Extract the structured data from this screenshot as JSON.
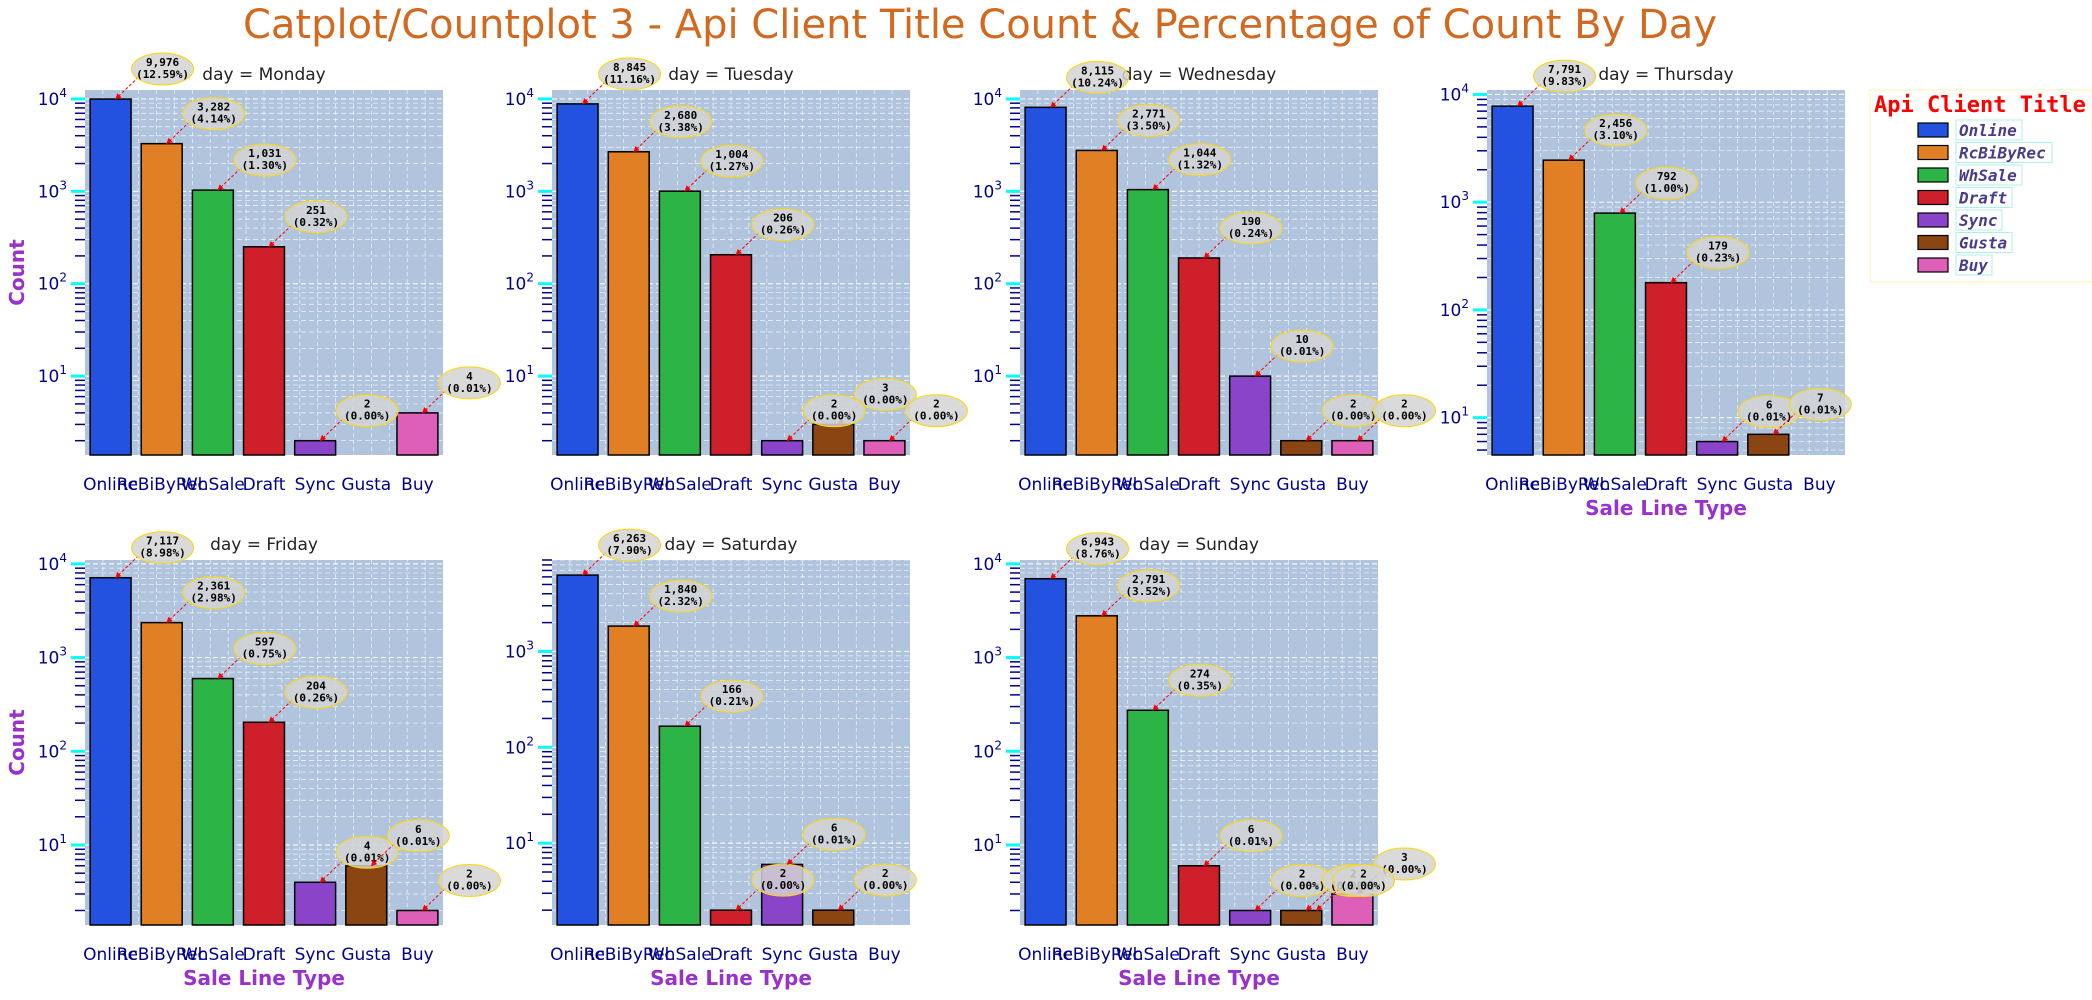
{
  "title": "Catplot/Countplot 3 - Api Client Title Count & Percentage of Count By Day",
  "colors": {
    "title": "#d2691e",
    "plot_background": "#b0c4de",
    "grid": "#ffffff",
    "tick_label": "#00008b",
    "major_tick": "#00ffff",
    "minor_tick": "#00008b",
    "axis_label": "#9932cc",
    "legend_title": "#ff0000",
    "legend_text": "#483d8b",
    "annotation_arrow": "#ff0000",
    "annotation_box": "#d3d3d3",
    "annotation_box_edge": "#ffd700"
  },
  "chart_data": {
    "type": "bar",
    "title": "Catplot/Countplot 3 - Api Client Title Count & Percentage of Count By Day",
    "xlabel": "Sale Line Type",
    "ylabel": "Count",
    "yscale": "log",
    "grid": true,
    "legend_title": "Api Client Title",
    "legend_position": "right",
    "categories": [
      "Online",
      "RcBiByRec",
      "WhSale",
      "Draft",
      "Sync",
      "Gusta",
      "Buy"
    ],
    "category_colors": [
      "#2452e0",
      "#e07f24",
      "#2db446",
      "#cf1f2b",
      "#8a44c9",
      "#8b4513",
      "#dd5fb8"
    ],
    "legend": [
      "Online",
      "RcBiByRec",
      "WhSale",
      "Draft",
      "Sync",
      "Gusta",
      "Buy"
    ],
    "panels": [
      {
        "title": "day = Monday",
        "ylim": [
          1.4,
          12500
        ],
        "yticks": [
          "10^1",
          "10^2",
          "10^3",
          "10^4"
        ],
        "values": [
          9976,
          3282,
          1031,
          251,
          2,
          null,
          4
        ],
        "labels": [
          [
            "9,976",
            "(12.59%)"
          ],
          [
            "3,282",
            "(4.14%)"
          ],
          [
            "1,031",
            "(1.30%)"
          ],
          [
            "251",
            "(0.32%)"
          ],
          [
            "2",
            "(0.00%)"
          ],
          null,
          [
            "4",
            "(0.01%)"
          ]
        ]
      },
      {
        "title": "day = Tuesday",
        "ylim": [
          1.4,
          12500
        ],
        "yticks": [
          "10^1",
          "10^2",
          "10^3",
          "10^4"
        ],
        "values": [
          8845,
          2680,
          1004,
          206,
          2,
          3,
          2
        ],
        "labels": [
          [
            "8,845",
            "(11.16%)"
          ],
          [
            "2,680",
            "(3.38%)"
          ],
          [
            "1,004",
            "(1.27%)"
          ],
          [
            "206",
            "(0.26%)"
          ],
          null,
          [
            "3",
            "(0.00%)"
          ],
          [
            "2",
            "(0.00%)"
          ]
        ],
        "extra_labels": [
          {
            "x": 4.5,
            "lines": [
              "2",
              "(0.00%)"
            ]
          }
        ]
      },
      {
        "title": "day = Wednesday",
        "ylim": [
          1.4,
          12500
        ],
        "yticks": [
          "10^1",
          "10^2",
          "10^3",
          "10^4"
        ],
        "values": [
          8115,
          2771,
          1044,
          190,
          10,
          2,
          2
        ],
        "labels": [
          [
            "8,115",
            "(10.24%)"
          ],
          [
            "2,771",
            "(3.50%)"
          ],
          [
            "1,044",
            "(1.32%)"
          ],
          [
            "190",
            "(0.24%)"
          ],
          [
            "10",
            "(0.01%)"
          ],
          [
            "2",
            "(0.00%)"
          ],
          [
            "2",
            "(0.00%)"
          ]
        ]
      },
      {
        "title": "day = Thursday",
        "ylim": [
          4.5,
          11000
        ],
        "yticks": [
          "10^1",
          "10^2",
          "10^3",
          "10^4"
        ],
        "values": [
          7791,
          2456,
          792,
          179,
          6,
          7,
          null
        ],
        "labels": [
          [
            "7,791",
            "(9.83%)"
          ],
          [
            "2,456",
            "(3.10%)"
          ],
          [
            "792",
            "(1.00%)"
          ],
          [
            "179",
            "(0.23%)"
          ],
          [
            "6",
            "(0.01%)"
          ],
          [
            "7",
            "(0.01%)"
          ],
          null
        ]
      },
      {
        "title": "day = Friday",
        "ylim": [
          1.4,
          11000
        ],
        "yticks": [
          "10^1",
          "10^2",
          "10^3",
          "10^4"
        ],
        "values": [
          7117,
          2361,
          597,
          204,
          4,
          6,
          2
        ],
        "labels": [
          [
            "7,117",
            "(8.98%)"
          ],
          [
            "2,361",
            "(2.98%)"
          ],
          [
            "597",
            "(0.75%)"
          ],
          [
            "204",
            "(0.26%)"
          ],
          [
            "4",
            "(0.01%)"
          ],
          [
            "6",
            "(0.01%)"
          ],
          [
            "2",
            "(0.00%)"
          ]
        ]
      },
      {
        "title": "day = Saturday",
        "ylim": [
          1.4,
          9000
        ],
        "yticks": [
          "10^1",
          "10^2",
          "10^3"
        ],
        "values": [
          6263,
          1840,
          166,
          2,
          6,
          2,
          null
        ],
        "labels": [
          [
            "6,263",
            "(7.90%)"
          ],
          [
            "1,840",
            "(2.32%)"
          ],
          [
            "166",
            "(0.21%)"
          ],
          [
            "2",
            "(0.00%)"
          ],
          [
            "6",
            "(0.01%)"
          ],
          [
            "2",
            "(0.00%)"
          ],
          null
        ]
      },
      {
        "title": "day = Sunday",
        "ylim": [
          1.4,
          11000
        ],
        "yticks": [
          "10^1",
          "10^2",
          "10^3",
          "10^4"
        ],
        "values": [
          6943,
          2791,
          274,
          6,
          2,
          2,
          3
        ],
        "labels": [
          [
            "6,943",
            "(8.76%)"
          ],
          [
            "2,791",
            "(3.52%)"
          ],
          [
            "274",
            "(0.35%)"
          ],
          [
            "6",
            "(0.01%)"
          ],
          [
            "2",
            "(0.00%)"
          ],
          [
            "2",
            "(0.00%)"
          ],
          [
            "3",
            "(0.00%)"
          ]
        ],
        "extra_labels": [
          {
            "x": 5.7,
            "lines": [
              "2",
              "(0.00%)"
            ]
          }
        ]
      }
    ]
  }
}
